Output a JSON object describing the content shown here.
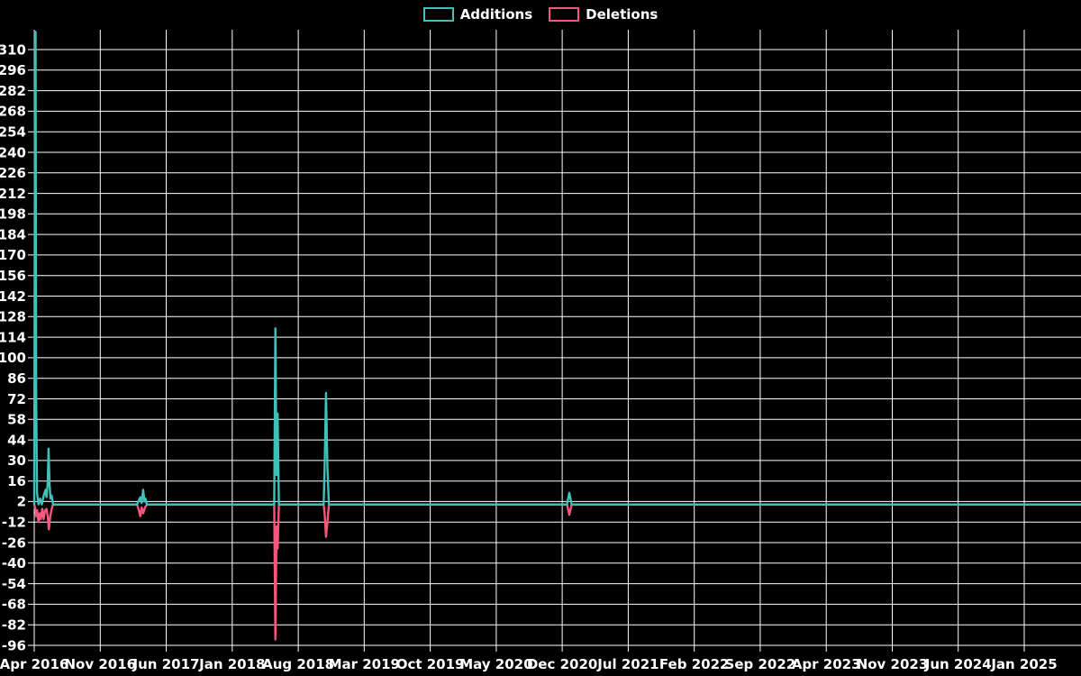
{
  "legend": {
    "items": [
      {
        "label": "Additions",
        "color": "#3fc1ba"
      },
      {
        "label": "Deletions",
        "color": "#f9557e"
      }
    ]
  },
  "chart_data": {
    "type": "line",
    "title": "",
    "background": "#000000",
    "grid_color": "#ffffff",
    "text_color": "#ffffff",
    "legend_position": "top-center",
    "grid": true,
    "x_axis": {
      "unit": "months since Apr 2016",
      "tick_step_months": 7,
      "tick_labels": [
        "Apr 2016",
        "Nov 2016",
        "Jun 2017",
        "Jan 2018",
        "Aug 2018",
        "Mar 2019",
        "Oct 2019",
        "May 2020",
        "Dec 2020",
        "Jul 2021",
        "Feb 2022",
        "Sep 2022",
        "Apr 2023",
        "Nov 2023",
        "Jun 2024",
        "Jan 2025"
      ],
      "range_months": [
        0,
        111
      ]
    },
    "y_axis": {
      "max": 310,
      "min": -96,
      "step": 14,
      "tick_labels": [
        "310",
        "296",
        "282",
        "268",
        "254",
        "240",
        "226",
        "212",
        "198",
        "184",
        "170",
        "156",
        "142",
        "128",
        "114",
        "100",
        "86",
        "72",
        "58",
        "44",
        "30",
        "16",
        "2",
        "-12",
        "-26",
        "-40",
        "-54",
        "-68",
        "-82",
        "-96"
      ],
      "plot_top_clip_value": 322
    },
    "series": [
      {
        "name": "Additions",
        "color": "#3fc1ba",
        "points": [
          [
            0.0,
            0
          ],
          [
            0.1,
            322
          ],
          [
            0.14,
            322
          ],
          [
            0.2,
            80
          ],
          [
            0.3,
            8
          ],
          [
            0.45,
            0
          ],
          [
            0.62,
            4
          ],
          [
            0.8,
            0
          ],
          [
            1.0,
            6
          ],
          [
            1.2,
            10
          ],
          [
            1.3,
            5
          ],
          [
            1.43,
            15
          ],
          [
            1.52,
            38
          ],
          [
            1.62,
            14
          ],
          [
            1.72,
            4
          ],
          [
            1.85,
            6
          ],
          [
            2.0,
            0
          ],
          [
            10.9,
            0
          ],
          [
            11.1,
            3
          ],
          [
            11.25,
            5
          ],
          [
            11.4,
            1
          ],
          [
            11.55,
            10
          ],
          [
            11.7,
            2
          ],
          [
            11.8,
            4
          ],
          [
            11.95,
            0
          ],
          [
            25.45,
            0
          ],
          [
            25.58,
            120
          ],
          [
            25.7,
            20
          ],
          [
            25.82,
            62
          ],
          [
            25.95,
            0
          ],
          [
            30.7,
            0
          ],
          [
            30.82,
            32
          ],
          [
            30.95,
            76
          ],
          [
            31.1,
            25
          ],
          [
            31.25,
            0
          ],
          [
            56.5,
            0
          ],
          [
            56.75,
            8
          ],
          [
            57.0,
            0
          ],
          [
            111,
            0
          ]
        ]
      },
      {
        "name": "Deletions",
        "color": "#f9557e",
        "points": [
          [
            0.0,
            0
          ],
          [
            0.12,
            -3
          ],
          [
            0.2,
            -8
          ],
          [
            0.32,
            -4
          ],
          [
            0.45,
            -12
          ],
          [
            0.58,
            -6
          ],
          [
            0.7,
            -10
          ],
          [
            0.85,
            -3
          ],
          [
            1.0,
            -10
          ],
          [
            1.15,
            -4
          ],
          [
            1.3,
            -3
          ],
          [
            1.43,
            -8
          ],
          [
            1.55,
            -17
          ],
          [
            1.7,
            -8
          ],
          [
            1.85,
            -3
          ],
          [
            2.0,
            0
          ],
          [
            10.9,
            0
          ],
          [
            11.05,
            -3
          ],
          [
            11.25,
            -8
          ],
          [
            11.4,
            -2
          ],
          [
            11.55,
            -6
          ],
          [
            11.75,
            -2
          ],
          [
            11.95,
            0
          ],
          [
            25.45,
            0
          ],
          [
            25.58,
            -92
          ],
          [
            25.7,
            -15
          ],
          [
            25.82,
            -30
          ],
          [
            25.95,
            0
          ],
          [
            30.7,
            0
          ],
          [
            30.82,
            -8
          ],
          [
            30.95,
            -22
          ],
          [
            31.1,
            -12
          ],
          [
            31.25,
            0
          ],
          [
            56.5,
            0
          ],
          [
            56.75,
            -7
          ],
          [
            57.0,
            0
          ],
          [
            111,
            0
          ]
        ]
      }
    ]
  }
}
